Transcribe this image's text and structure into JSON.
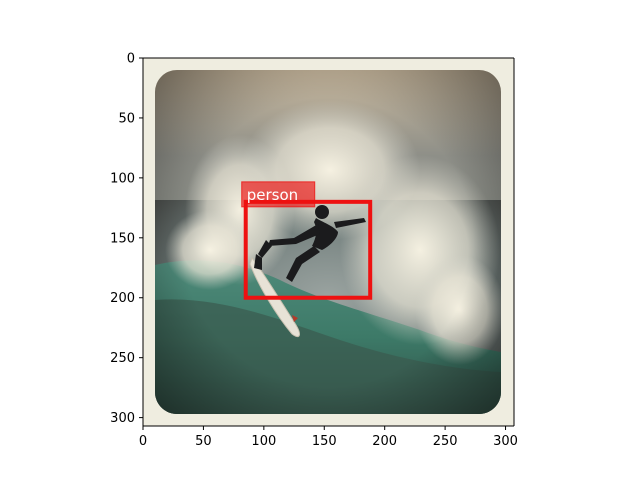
{
  "axes": {
    "x_ticks": [
      "0",
      "50",
      "100",
      "150",
      "200",
      "250",
      "300"
    ],
    "y_ticks": [
      "0",
      "50",
      "100",
      "150",
      "200",
      "250",
      "300"
    ],
    "x_range": [
      0,
      307
    ],
    "y_range": [
      0,
      307
    ]
  },
  "image": {
    "subject": "surfer riding a breaking wave",
    "frame_color": "#efede0"
  },
  "detections": [
    {
      "label": "person",
      "box_xyxy": [
        85,
        120,
        188,
        200
      ],
      "color": "#ee1111"
    }
  ]
}
